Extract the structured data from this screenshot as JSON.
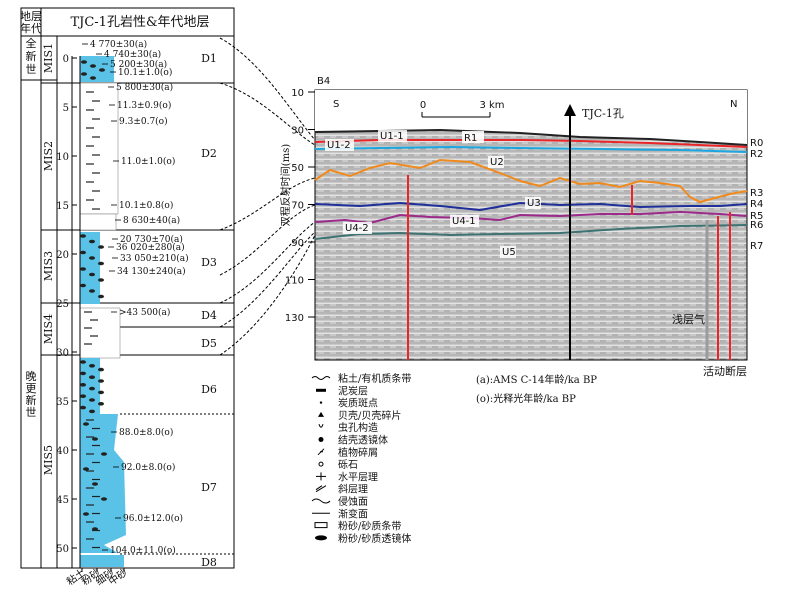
{
  "header": {
    "era_head_1": "地层",
    "era_head_2": "年代",
    "title": "TJC-1孔岩性&年代地层"
  },
  "epochs": {
    "holocene": [
      "全",
      "新",
      "世"
    ],
    "late_pleistocene": [
      "晚",
      "更",
      "新",
      "世"
    ]
  },
  "mis": [
    {
      "label": "MIS1"
    },
    {
      "label": "MIS2"
    },
    {
      "label": "MIS3"
    },
    {
      "label": "MIS4"
    },
    {
      "label": "MIS5"
    }
  ],
  "depth_axis": {
    "ticks": [
      "0",
      "5",
      "10",
      "15",
      "20",
      "25",
      "30",
      "35",
      "40",
      "45",
      "50"
    ]
  },
  "units": [
    {
      "label": "D1"
    },
    {
      "label": "D2"
    },
    {
      "label": "D3"
    },
    {
      "label": "D4"
    },
    {
      "label": "D5"
    },
    {
      "label": "D6"
    },
    {
      "label": "D7"
    },
    {
      "label": "D8"
    }
  ],
  "ages": [
    {
      "text": "4 770±30(a)"
    },
    {
      "text": "4 740±30(a)"
    },
    {
      "text": "5 200±30(a)"
    },
    {
      "text": "10.1±1.0(o)"
    },
    {
      "text": "5 800±30(a)"
    },
    {
      "text": "11.3±0.9(o)"
    },
    {
      "text": "9.3±0.7(o)"
    },
    {
      "text": "11.0±1.0(o)"
    },
    {
      "text": "10.1±0.8(o)"
    },
    {
      "text": "8 630±40(a)"
    },
    {
      "text": "20 730±70(a)"
    },
    {
      "text": "36 020±280(a)"
    },
    {
      "text": "33 050±210(a)"
    },
    {
      "text": "34 130±240(a)"
    },
    {
      "text": ">43 500(a)"
    },
    {
      "text": "88.0±8.0(o)"
    },
    {
      "text": "92.0±8.0(o)"
    },
    {
      "text": "96.0±12.0(o)"
    },
    {
      "text": "104.0±11.0(o)"
    }
  ],
  "grain_axis": [
    "粘土",
    "粉砂",
    "细砂",
    "中砂"
  ],
  "legend": [
    {
      "label": "粘土/有机质条带"
    },
    {
      "label": "泥炭层"
    },
    {
      "label": "炭质斑点"
    },
    {
      "label": "贝壳/贝壳碎片"
    },
    {
      "label": "虫孔构造"
    },
    {
      "label": "结壳透镜体"
    },
    {
      "label": "植物碎屑"
    },
    {
      "label": "砾石"
    },
    {
      "label": "水平层理"
    },
    {
      "label": "斜层理"
    },
    {
      "label": "侵蚀面"
    },
    {
      "label": "渐变面"
    },
    {
      "label": "粉砂/砂质条带"
    },
    {
      "label": "粉砂/砂质透镜体"
    }
  ],
  "age_notes": [
    "(a):AMS C-14年龄/ka BP",
    "(o):光释光年龄/ka BP"
  ],
  "seismic": {
    "panel_id": "B4",
    "left_dir": "S",
    "right_dir": "N",
    "scale_0": "0",
    "scale_3": "3 km",
    "borehole": "TJC-1孔",
    "ylabel": "双程反射时间(ms)",
    "yticks": [
      "10",
      "30",
      "50",
      "70",
      "90",
      "110",
      "130"
    ],
    "units": [
      "U1-1",
      "U1-2",
      "U2",
      "U3",
      "U4-1",
      "U4-2",
      "U5"
    ],
    "reflectors": [
      "R0",
      "R1",
      "R2",
      "R3",
      "R4",
      "R5",
      "R6",
      "R7"
    ],
    "shallow_gas": "浅层气",
    "active_fault": "活动断层",
    "colors": {
      "R0": "#222222",
      "R1": "#e8262a",
      "R2": "#1ba6e0",
      "R3": "#f08a1c",
      "R4": "#1e2f9a",
      "R5": "#9b2a8a",
      "R6": "#3d7373",
      "fault": "#e8262a"
    }
  }
}
